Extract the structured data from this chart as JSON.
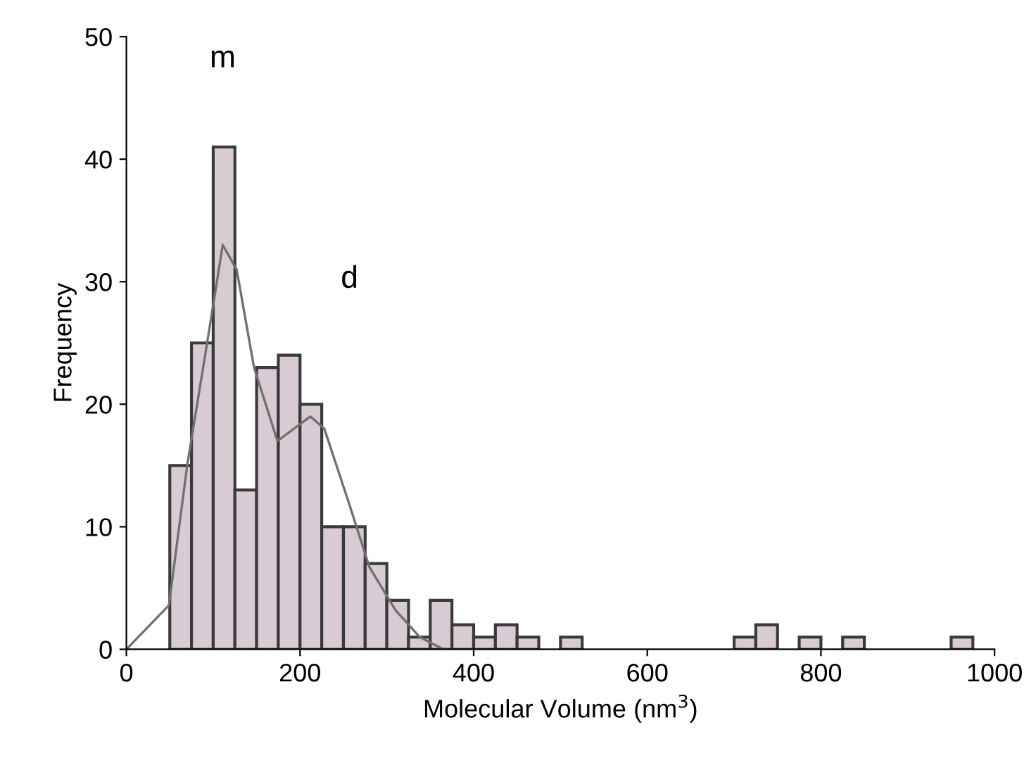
{
  "chart_data": {
    "type": "histogram",
    "xlabel": "Molecular Volume (nm$^{3}$)",
    "ylabel": "Frequency",
    "bins": [
      50,
      75,
      100,
      125,
      150,
      175,
      200,
      225,
      250,
      275,
      300,
      325,
      350,
      375,
      400,
      425,
      450,
      475,
      500,
      525,
      550,
      575,
      600,
      625,
      650,
      675,
      700,
      725,
      750,
      775,
      800,
      825,
      850,
      875,
      900,
      925,
      950,
      975
    ],
    "values": [
      15,
      25,
      41,
      13,
      23,
      24,
      20,
      10,
      10,
      7,
      4,
      1,
      4,
      2,
      1,
      2,
      1,
      0,
      1,
      0,
      0,
      0,
      0,
      0,
      0,
      0,
      1,
      2,
      0,
      1,
      0,
      1,
      0,
      0,
      0,
      0,
      1
    ],
    "color": "#d9cbd3",
    "series": [
      {
        "type": "line",
        "color": "#707070",
        "x": [
          0,
          49,
          70,
          93,
          111,
          127,
          147,
          174,
          212,
          228,
          256,
          280,
          310,
          338,
          365
        ],
        "values": [
          0,
          3.6,
          15,
          25,
          33,
          31,
          23,
          17,
          19,
          18,
          12,
          6.7,
          3.2,
          1,
          0
        ]
      }
    ],
    "annotations": [
      "m",
      "d"
    ],
    "xlim": [
      0,
      1000
    ],
    "xticks": [
      0,
      200,
      400,
      600,
      800,
      1000
    ],
    "ylim": [
      0,
      50
    ],
    "yticks": [
      0,
      10,
      20,
      30,
      40,
      50
    ],
    "grid": false
  }
}
